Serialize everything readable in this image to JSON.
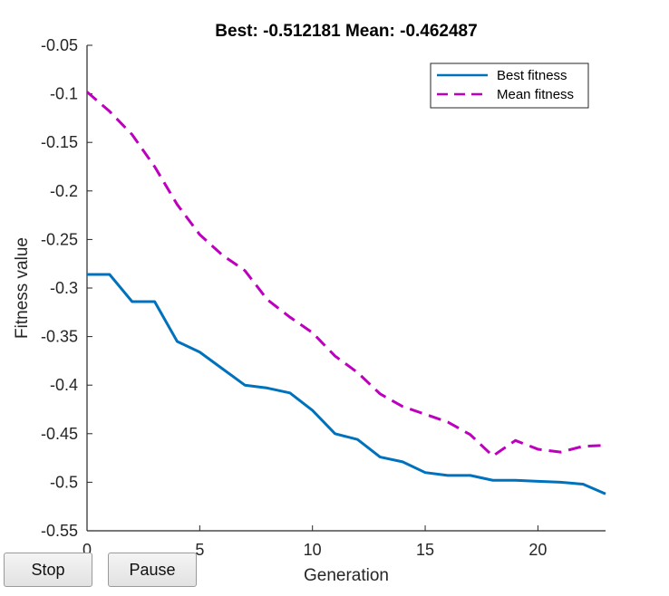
{
  "chart_data": {
    "type": "line",
    "title": "Best: -0.512181 Mean: -0.462487",
    "xlabel": "Generation",
    "ylabel": "Fitness value",
    "xlim": [
      0,
      23
    ],
    "ylim": [
      -0.55,
      -0.05
    ],
    "xticks": [
      0,
      5,
      10,
      15,
      20
    ],
    "xtick_labels": [
      "0",
      "5",
      "10",
      "15",
      "20"
    ],
    "yticks": [
      -0.55,
      -0.5,
      -0.45,
      -0.4,
      -0.35,
      -0.3,
      -0.25,
      -0.2,
      -0.15,
      -0.1,
      -0.05
    ],
    "ytick_labels": [
      "-0.55",
      "-0.5",
      "-0.45",
      "-0.4",
      "-0.35",
      "-0.3",
      "-0.25",
      "-0.2",
      "-0.15",
      "-0.1",
      "-0.05"
    ],
    "grid": false,
    "legend_position": "top-right",
    "x": [
      0,
      1,
      2,
      3,
      4,
      5,
      6,
      7,
      8,
      9,
      10,
      11,
      12,
      13,
      14,
      15,
      16,
      17,
      18,
      19,
      20,
      21,
      22,
      23
    ],
    "series": [
      {
        "name": "Best fitness",
        "color": "#0072BD",
        "style": "solid",
        "values": [
          -0.286,
          -0.286,
          -0.314,
          -0.314,
          -0.355,
          -0.366,
          -0.383,
          -0.4,
          -0.403,
          -0.408,
          -0.426,
          -0.45,
          -0.456,
          -0.474,
          -0.479,
          -0.49,
          -0.493,
          -0.493,
          -0.498,
          -0.498,
          -0.499,
          -0.5,
          -0.502,
          -0.512
        ]
      },
      {
        "name": "Mean fitness",
        "color": "#BD00BD",
        "style": "dashed",
        "values": [
          -0.098,
          -0.118,
          -0.142,
          -0.175,
          -0.214,
          -0.245,
          -0.266,
          -0.282,
          -0.312,
          -0.33,
          -0.346,
          -0.37,
          -0.387,
          -0.409,
          -0.422,
          -0.43,
          -0.438,
          -0.451,
          -0.473,
          -0.457,
          -0.466,
          -0.469,
          -0.463,
          -0.462
        ]
      }
    ]
  },
  "buttons": {
    "stop_label": "Stop",
    "pause_label": "Pause"
  }
}
